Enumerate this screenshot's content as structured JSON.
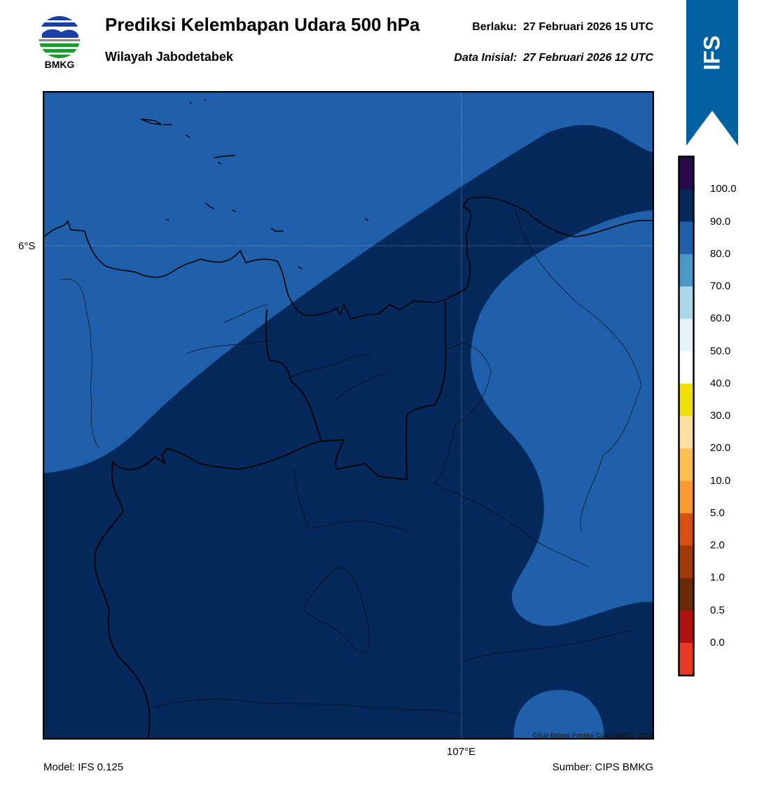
{
  "header": {
    "title": "Prediksi Kelembapan Udara 500 hPa",
    "subtitle": "Wilayah Jabodetabek",
    "valid_label": "Berlaku:",
    "valid_time": "27 Februari 2026 15 UTC",
    "init_label": "Data Inisial:",
    "init_time": "27 Februari 2026 12 UTC"
  },
  "logo": {
    "name": "bmkg-logo",
    "text": "BMKG"
  },
  "badge": {
    "text": "IFS",
    "color": "#0060a0"
  },
  "map": {
    "lat_label": "6°S",
    "lon_label": "107°E",
    "copyright": "©Sub Bidang Prediksi Cuaca BMKG, 2023",
    "colors": {
      "band_80_90": "#2060aa",
      "band_90_100": "#06295c"
    }
  },
  "colorbar": {
    "labels": [
      "100.0",
      "90.0",
      "80.0",
      "70.0",
      "60.0",
      "50.0",
      "40.0",
      "30.0",
      "20.0",
      "10.0",
      "5.0",
      "2.0",
      "1.0",
      "0.5",
      "0.0"
    ],
    "colors": [
      "#2a0a4a",
      "#06295c",
      "#2060aa",
      "#4a98c8",
      "#a8d8ea",
      "#e6f2fa",
      "#ffffff",
      "#f0e000",
      "#ffe0a0",
      "#ffc050",
      "#ff9a30",
      "#d85010",
      "#a03808",
      "#6a2a08",
      "#b01010",
      "#e83828"
    ]
  },
  "footer": {
    "model": "Model: IFS 0.125",
    "source": "Sumber: CIPS BMKG"
  }
}
